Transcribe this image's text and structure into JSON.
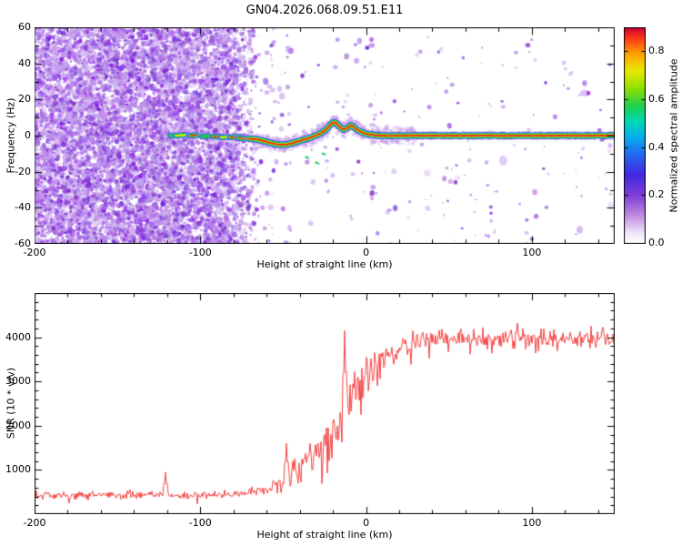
{
  "title": "GN04.2026.068.09.51.E11",
  "chart_data": [
    {
      "type": "heatmap",
      "role": "radio-occultation-spectrogram",
      "xlabel": "Height of straight line (km)",
      "ylabel": "Frequency (Hz)",
      "xlim": [
        -200,
        150
      ],
      "ylim": [
        -60,
        60
      ],
      "xticks": [
        -200,
        -100,
        0,
        100
      ],
      "yticks": [
        60,
        40,
        20,
        0,
        -20,
        -40,
        -60
      ],
      "x_minor_step": 20,
      "y_minor_step": 10,
      "noise": {
        "x_full_until": -85,
        "x_fade_until": -64,
        "description": "dense purple speckle noise across all frequencies left of ~-65 km, sparse pale speckle elsewhere"
      },
      "line_x_start": -71,
      "signal_trace": [
        [
          -71,
          -1.5
        ],
        [
          -64,
          -2.5
        ],
        [
          -58,
          -4
        ],
        [
          -52,
          -5
        ],
        [
          -47,
          -5
        ],
        [
          -42,
          -3.5
        ],
        [
          -37,
          -2
        ],
        [
          -33,
          -1
        ],
        [
          -30,
          0
        ],
        [
          -27,
          1.5
        ],
        [
          -24,
          3.5
        ],
        [
          -21,
          6.5
        ],
        [
          -19,
          8
        ],
        [
          -17,
          6
        ],
        [
          -15,
          4
        ],
        [
          -13,
          3
        ],
        [
          -11,
          4.5
        ],
        [
          -9,
          6
        ],
        [
          -7,
          4.5
        ],
        [
          -5,
          3
        ],
        [
          -3,
          2
        ],
        [
          0,
          1
        ],
        [
          4,
          0.5
        ],
        [
          8,
          0
        ],
        [
          150,
          0
        ]
      ],
      "pre_blobs": [
        [
          -116,
          0,
          0.5
        ],
        [
          -112,
          0,
          0.65
        ],
        [
          -104,
          0,
          0.75
        ],
        [
          -97,
          -0.5,
          0.5
        ],
        [
          -89,
          -0.5,
          0.85
        ],
        [
          -85,
          -1,
          0.6
        ],
        [
          -79,
          -1,
          0.75
        ],
        [
          -75,
          -1.5,
          0.9
        ]
      ],
      "outlier_dots": [
        [
          -36,
          -12
        ],
        [
          -30,
          -15
        ],
        [
          -26,
          -10
        ]
      ],
      "colorbar": {
        "label": "Normalized spectral amplitude",
        "ticks": [
          "0.0",
          "0.2",
          "0.4",
          "0.6",
          "0.8"
        ],
        "tick_values": [
          0,
          0.2,
          0.4,
          0.6,
          0.8
        ],
        "vmax": 0.9,
        "colormap": [
          [
            0.0,
            "#ffffff"
          ],
          [
            0.05,
            "#efe3f8"
          ],
          [
            0.13,
            "#c08ae0"
          ],
          [
            0.22,
            "#8040d8"
          ],
          [
            0.32,
            "#4028e0"
          ],
          [
            0.42,
            "#2070f0"
          ],
          [
            0.5,
            "#00b4e8"
          ],
          [
            0.57,
            "#00d8b0"
          ],
          [
            0.64,
            "#20d048"
          ],
          [
            0.72,
            "#90e000"
          ],
          [
            0.8,
            "#e8e800"
          ],
          [
            0.88,
            "#ffa000"
          ],
          [
            0.95,
            "#ff3818"
          ],
          [
            1.0,
            "#cc0030"
          ]
        ]
      }
    },
    {
      "type": "line",
      "role": "snr-profile",
      "xlabel": "Height of straight line (km)",
      "ylabel": "SNR (10 * v/v)",
      "xlim": [
        -200,
        150
      ],
      "ylim": [
        0,
        5000
      ],
      "xticks": [
        -200,
        -100,
        0,
        100
      ],
      "yticks": [
        1000,
        2000,
        3000,
        4000
      ],
      "x_minor_step": 20,
      "y_minor_step": 200,
      "color": "#f23030",
      "envelope": [
        [
          -200,
          430,
          140
        ],
        [
          -100,
          430,
          140
        ],
        [
          -80,
          450,
          150
        ],
        [
          -65,
          520,
          200
        ],
        [
          -55,
          620,
          280
        ],
        [
          -45,
          800,
          420
        ],
        [
          -38,
          1000,
          600
        ],
        [
          -30,
          1350,
          750
        ],
        [
          -24,
          1600,
          850
        ],
        [
          -18,
          1900,
          900
        ],
        [
          -12,
          2300,
          950
        ],
        [
          -6,
          2700,
          900
        ],
        [
          0,
          3050,
          800
        ],
        [
          6,
          3300,
          650
        ],
        [
          14,
          3600,
          500
        ],
        [
          25,
          3850,
          380
        ],
        [
          40,
          3950,
          340
        ],
        [
          80,
          3980,
          330
        ],
        [
          120,
          3960,
          330
        ],
        [
          150,
          3950,
          330
        ]
      ],
      "spikes": [
        [
          -121,
          950
        ],
        [
          -48,
          1600
        ],
        [
          -13,
          4150
        ]
      ]
    }
  ]
}
